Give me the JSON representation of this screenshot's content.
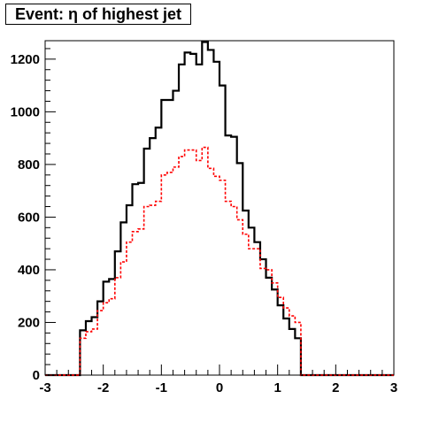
{
  "chart_data": {
    "type": "step-histogram",
    "title": "Event: η of highest jet",
    "xlabel": "",
    "ylabel": "",
    "xlim": [
      -3,
      3
    ],
    "ylim": [
      0,
      1270
    ],
    "xticks": [
      -3,
      -2,
      -1,
      0,
      1,
      2,
      3
    ],
    "yticks": [
      0,
      200,
      400,
      600,
      800,
      1000,
      1200
    ],
    "grid": false,
    "bin_width": 0.1,
    "bin_edges_start": -3.0,
    "series": [
      {
        "style": "solid",
        "color": "#000000",
        "values": [
          0,
          0,
          0,
          0,
          0,
          0,
          170,
          205,
          220,
          280,
          355,
          365,
          470,
          580,
          645,
          725,
          730,
          860,
          900,
          940,
          1045,
          1045,
          1080,
          1180,
          1225,
          1220,
          1180,
          1265,
          1235,
          1190,
          1100,
          910,
          905,
          805,
          625,
          560,
          505,
          440,
          370,
          325,
          265,
          215,
          175,
          140,
          0,
          0,
          0,
          0,
          0,
          0,
          0,
          0,
          0,
          0,
          0,
          0,
          0,
          0,
          0,
          0
        ]
      },
      {
        "style": "dashed",
        "color": "#ff0000",
        "values": [
          0,
          0,
          0,
          0,
          0,
          0,
          140,
          165,
          175,
          245,
          275,
          290,
          370,
          430,
          505,
          545,
          555,
          640,
          645,
          660,
          760,
          770,
          790,
          830,
          855,
          855,
          815,
          865,
          785,
          755,
          740,
          660,
          640,
          590,
          535,
          480,
          480,
          405,
          400,
          350,
          295,
          255,
          225,
          200,
          0,
          0,
          0,
          0,
          0,
          0,
          0,
          0,
          0,
          0,
          0,
          0,
          0,
          0,
          0,
          0
        ]
      }
    ]
  }
}
